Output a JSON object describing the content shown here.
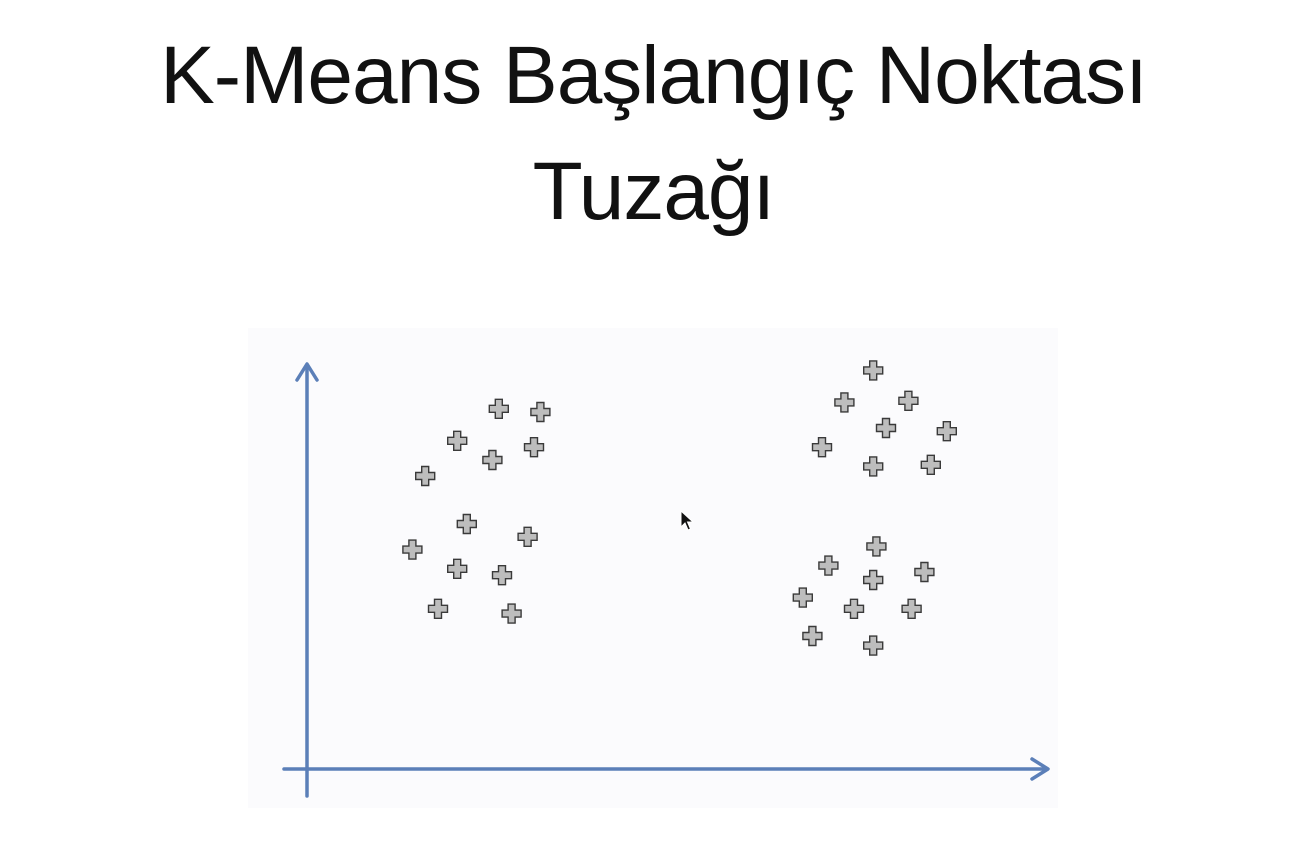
{
  "title": {
    "line1": "K-Means Başlangıç Noktası",
    "line2": "Tuzağı"
  },
  "colors": {
    "axis": "#5b7fb8",
    "marker_fill": "#bdbdbd",
    "marker_stroke": "#3a3a3a",
    "panel_bg": "#fbfbfd"
  },
  "chart_data": {
    "type": "scatter",
    "xlabel": "",
    "ylabel": "",
    "xlim": [
      0,
      100
    ],
    "ylim": [
      0,
      100
    ],
    "grid": false,
    "axes_arrows": true,
    "marker": "plus-icon",
    "points": [
      {
        "x": 22,
        "y": 86
      },
      {
        "x": 28.5,
        "y": 85
      },
      {
        "x": 15.5,
        "y": 76
      },
      {
        "x": 27.5,
        "y": 74
      },
      {
        "x": 21,
        "y": 70
      },
      {
        "x": 10.5,
        "y": 65
      },
      {
        "x": 17,
        "y": 50
      },
      {
        "x": 26.5,
        "y": 46
      },
      {
        "x": 8.5,
        "y": 42
      },
      {
        "x": 15.5,
        "y": 36
      },
      {
        "x": 22.5,
        "y": 34
      },
      {
        "x": 12.5,
        "y": 23.5
      },
      {
        "x": 24,
        "y": 22
      },
      {
        "x": 80.5,
        "y": 98
      },
      {
        "x": 76,
        "y": 88
      },
      {
        "x": 86,
        "y": 88.5
      },
      {
        "x": 82.5,
        "y": 80
      },
      {
        "x": 92,
        "y": 79
      },
      {
        "x": 72.5,
        "y": 74
      },
      {
        "x": 80.5,
        "y": 68
      },
      {
        "x": 89.5,
        "y": 68.5
      },
      {
        "x": 81,
        "y": 43
      },
      {
        "x": 73.5,
        "y": 37
      },
      {
        "x": 80.5,
        "y": 32.5
      },
      {
        "x": 88.5,
        "y": 35
      },
      {
        "x": 69.5,
        "y": 27
      },
      {
        "x": 77.5,
        "y": 23.5
      },
      {
        "x": 86.5,
        "y": 23.5
      },
      {
        "x": 71,
        "y": 15
      },
      {
        "x": 80.5,
        "y": 12
      }
    ]
  }
}
